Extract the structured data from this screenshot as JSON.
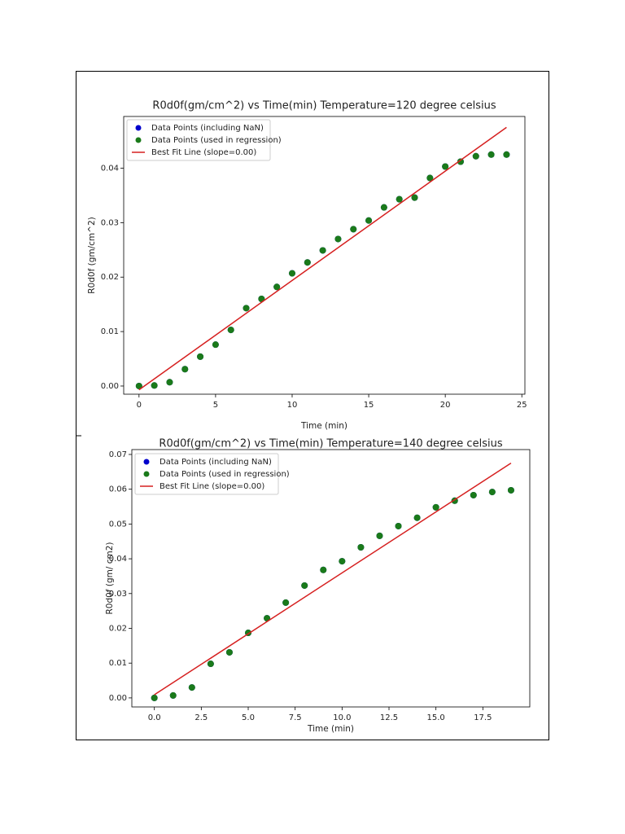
{
  "chart_data": [
    {
      "type": "scatter",
      "title": "R0d0f(gm/cm^2) vs Time(min) Temperature=120 degree celsius",
      "x_label": "Time (min)",
      "y_label": "R0d0f (gm/cm^2)",
      "x": [
        0,
        1,
        2,
        3,
        4,
        5,
        6,
        7,
        8,
        9,
        10,
        11,
        12,
        13,
        14,
        15,
        16,
        17,
        18,
        19,
        20,
        21,
        22,
        23,
        24
      ],
      "series": [
        {
          "name": "Data Points (including NaN)",
          "color": "#0000cc",
          "values": [
            0,
            0.0001,
            0.0007,
            0.0031,
            0.0054,
            0.0076,
            0.0103,
            0.0143,
            0.016,
            0.0182,
            0.0207,
            0.0227,
            0.0249,
            0.027,
            0.0288,
            0.0304,
            0.0328,
            0.0343,
            0.0346,
            0.0382,
            0.0403,
            0.0412,
            0.0422,
            0.0425,
            0.0425
          ]
        },
        {
          "name": "Data Points (used in regression)",
          "color": "#1a7a1a",
          "values": [
            0,
            0.0001,
            0.0007,
            0.0031,
            0.0054,
            0.0076,
            0.0103,
            0.0143,
            0.016,
            0.0182,
            0.0207,
            0.0227,
            0.0249,
            0.027,
            0.0288,
            0.0304,
            0.0328,
            0.0343,
            0.0346,
            0.0382,
            0.0403,
            0.0412,
            0.0422,
            0.0425,
            0.0425
          ]
        },
        {
          "name": "Best Fit Line (slope=0.00)",
          "color": "#d62020",
          "x": [
            0,
            24
          ],
          "values": [
            -0.0007,
            0.0475
          ]
        }
      ],
      "xlim": [
        -1.0,
        25.2
      ],
      "ylim": [
        -0.0015,
        0.0495
      ],
      "xticks": [
        0,
        5,
        10,
        15,
        20,
        25
      ],
      "yticks": [
        {
          "value": 0,
          "label": "0.00"
        },
        0.01,
        0.02,
        0.03,
        0.04
      ]
    },
    {
      "type": "scatter",
      "title": "R0d0f(gm/cm^2) vs Time(min) Temperature=140 degree celsius",
      "x_label": "Time (min)",
      "y_label": "R0d0f (gm/ cm2)",
      "x": [
        0,
        1,
        2,
        3,
        4,
        5,
        6,
        7,
        8,
        9,
        10,
        11,
        12,
        13,
        14,
        15,
        16,
        17,
        18,
        19
      ],
      "series": [
        {
          "name": "Data Points (including NaN)",
          "color": "#0000cc",
          "values": [
            0,
            0.0007,
            0.003,
            0.0098,
            0.0131,
            0.0187,
            0.0229,
            0.0274,
            0.0323,
            0.0368,
            0.0393,
            0.0433,
            0.0466,
            0.0494,
            0.0518,
            0.0548,
            0.0567,
            0.0583,
            0.0592,
            0.0597
          ]
        },
        {
          "name": "Data Points (used in regression)",
          "color": "#1a7a1a",
          "values": [
            0,
            0.0007,
            0.003,
            0.0098,
            0.0131,
            0.0187,
            0.0229,
            0.0274,
            0.0323,
            0.0368,
            0.0393,
            0.0433,
            0.0466,
            0.0494,
            0.0518,
            0.0548,
            0.0567,
            0.0583,
            0.0592,
            0.0597
          ]
        },
        {
          "name": "Best Fit Line (slope=0.00)",
          "color": "#d62020",
          "x": [
            0,
            19
          ],
          "values": [
            0.0009,
            0.0675
          ]
        }
      ],
      "xlim": [
        -1.2,
        20.0
      ],
      "ylim": [
        -0.0026,
        0.0714
      ],
      "xticks": [
        {
          "value": 0,
          "label": "0.0"
        },
        2.5,
        {
          "value": 5,
          "label": "5.0"
        },
        7.5,
        {
          "value": 10,
          "label": "10.0"
        },
        12.5,
        {
          "value": 15,
          "label": "15.0"
        },
        17.5
      ],
      "yticks": [
        {
          "value": 0,
          "label": "0.00"
        },
        0.01,
        0.02,
        0.03,
        0.04,
        0.05,
        0.06,
        0.07
      ]
    }
  ]
}
